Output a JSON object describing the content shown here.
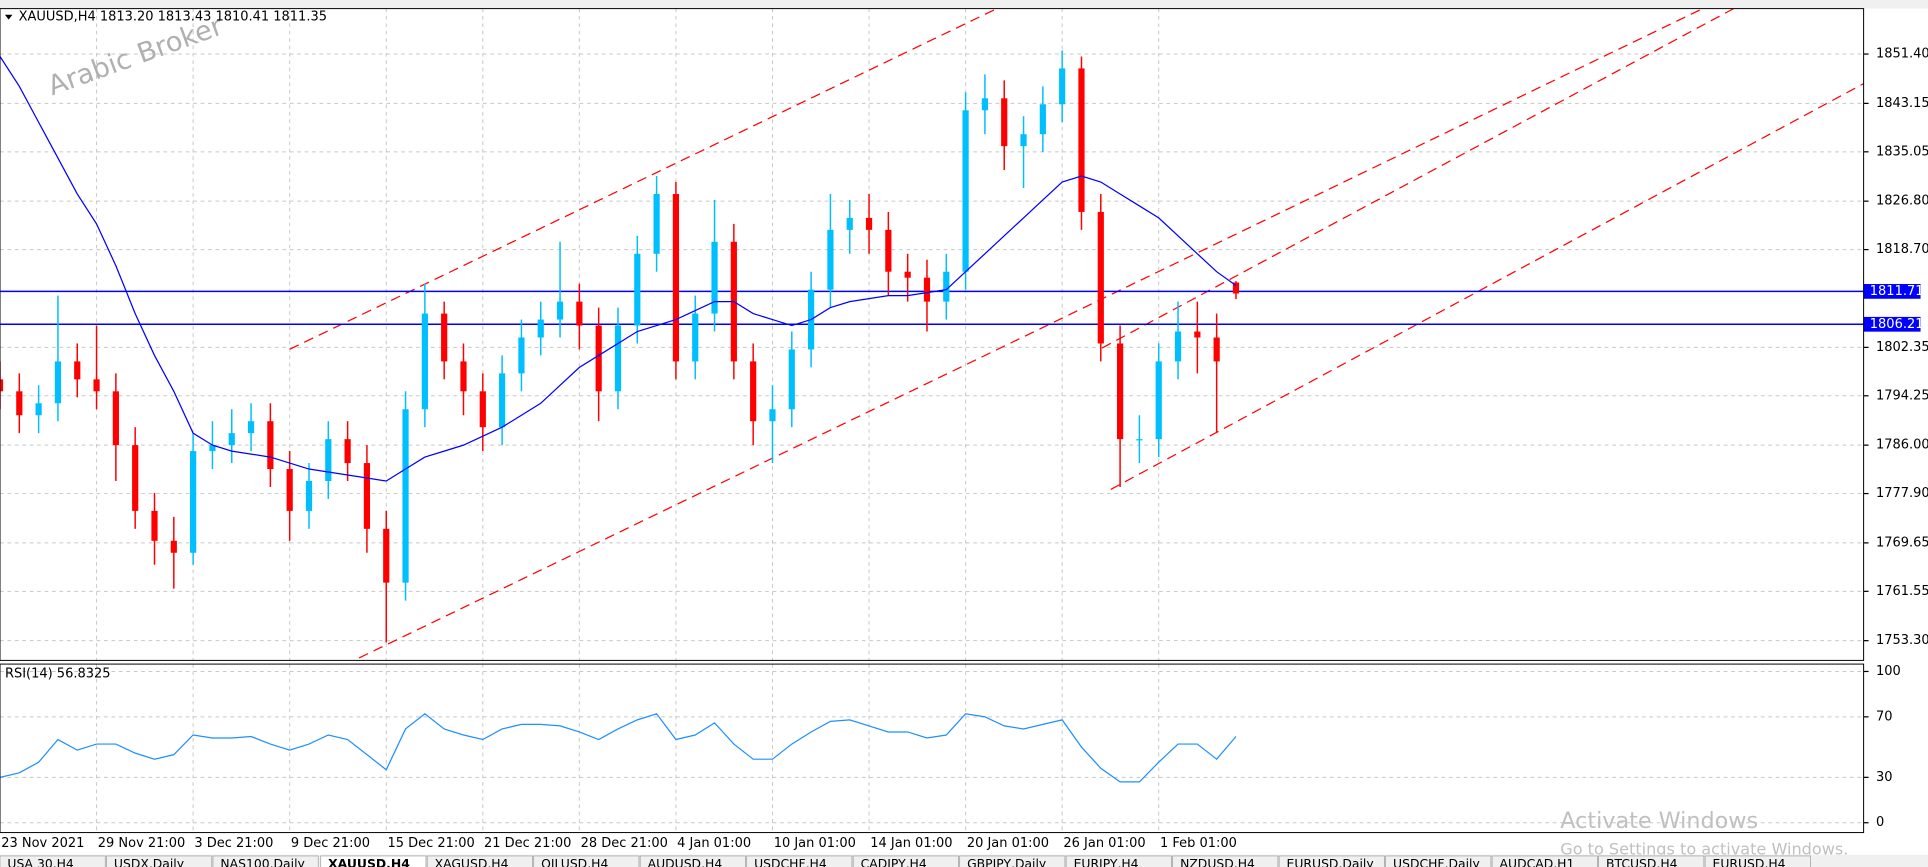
{
  "chart_data": [
    {
      "type": "candlestick",
      "title": "XAUUSD,H4  1813.20 1813.43 1810.41 1811.35",
      "open": [
        1797,
        1795,
        1791,
        1793,
        1800,
        1797,
        1795,
        1786,
        1775,
        1770,
        1768,
        1785,
        1786,
        1788,
        1790,
        1782,
        1775,
        1780,
        1787,
        1783,
        1772,
        1763,
        1792,
        1808,
        1800,
        1795,
        1789,
        1798,
        1804,
        1807,
        1810,
        1806,
        1795,
        1806,
        1818,
        1828,
        1800,
        1808,
        1820,
        1800,
        1790,
        1792,
        1802,
        1812,
        1822,
        1824,
        1822,
        1815,
        1814,
        1810,
        1815,
        1842,
        1844,
        1836,
        1838,
        1843,
        1849,
        1825,
        1803,
        1787,
        1787,
        1800,
        1805,
        1804,
        1813.2
      ],
      "high": [
        1800,
        1798,
        1796,
        1811,
        1803,
        1806,
        1798,
        1789,
        1778,
        1774,
        1788,
        1790,
        1792,
        1793,
        1793,
        1785,
        1783,
        1790,
        1790,
        1786,
        1775,
        1795,
        1813,
        1810,
        1803,
        1798,
        1801,
        1807,
        1810,
        1820,
        1813,
        1809,
        1809,
        1821,
        1831,
        1830,
        1811,
        1827,
        1823,
        1803,
        1796,
        1805,
        1815,
        1828,
        1827,
        1828,
        1825,
        1818,
        1817,
        1818,
        1845,
        1848,
        1847,
        1841,
        1846,
        1852,
        1851,
        1828,
        1806,
        1791,
        1803,
        1810,
        1810,
        1808,
        1813.43
      ],
      "low": [
        1792,
        1788,
        1788,
        1790,
        1794,
        1792,
        1780,
        1772,
        1766,
        1762,
        1766,
        1782,
        1783,
        1785,
        1779,
        1770,
        1772,
        1777,
        1780,
        1768,
        1753,
        1760,
        1789,
        1797,
        1791,
        1785,
        1786,
        1795,
        1801,
        1804,
        1802,
        1790,
        1792,
        1803,
        1815,
        1797,
        1797,
        1805,
        1797,
        1786,
        1783,
        1789,
        1799,
        1809,
        1818,
        1818,
        1811,
        1810,
        1805,
        1807,
        1812,
        1838,
        1832,
        1829,
        1835,
        1840,
        1822,
        1800,
        1779,
        1783,
        1784,
        1797,
        1798,
        1788,
        1810.41
      ],
      "close": [
        1795,
        1791,
        1793,
        1800,
        1797,
        1795,
        1786,
        1775,
        1770,
        1768,
        1785,
        1786,
        1788,
        1790,
        1782,
        1775,
        1780,
        1787,
        1783,
        1772,
        1763,
        1792,
        1808,
        1800,
        1795,
        1789,
        1798,
        1804,
        1807,
        1810,
        1806,
        1795,
        1806,
        1818,
        1828,
        1800,
        1808,
        1820,
        1800,
        1790,
        1792,
        1802,
        1812,
        1822,
        1824,
        1822,
        1815,
        1814,
        1810,
        1815,
        1842,
        1844,
        1836,
        1838,
        1843,
        1849,
        1825,
        1803,
        1787,
        1787,
        1800,
        1805,
        1804,
        1800,
        1811.35
      ],
      "up_color": "#00bfff",
      "down_color": "#ff0000",
      "series": [
        {
          "color": "#0000ff",
          "values": [
            1851,
            1846,
            1840,
            1834,
            1828,
            1823,
            1816,
            1808,
            1801,
            1795,
            1788,
            1786,
            1785,
            1784.5,
            1784,
            1783,
            1782,
            1781.5,
            1781,
            1780.5,
            1780,
            1782,
            1784,
            1785,
            1786,
            1787.5,
            1789,
            1791,
            1793,
            1796,
            1799,
            1801,
            1803,
            1805,
            1806,
            1807,
            1808.5,
            1810,
            1810,
            1808,
            1807,
            1806,
            1807,
            1809,
            1810,
            1810.5,
            1811,
            1811,
            1811.5,
            1812,
            1815,
            1818,
            1821,
            1824,
            1827,
            1830,
            1831,
            1830,
            1828,
            1826,
            1824,
            1821,
            1818,
            1815,
            1812.7
          ]
        }
      ],
      "horizontal_lines": [
        {
          "value": 1811.71,
          "color": "#0000ff"
        },
        {
          "value": 1806.21,
          "color": "#0000ff"
        }
      ],
      "xlim": [
        0,
        96.5
      ],
      "ylim": [
        1750.0,
        1859.0
      ],
      "yticks": [
        {
          "value": 1851.4,
          "label": "1851.40"
        },
        1843.15,
        1835.05,
        {
          "value": 1826.8,
          "label": "1826.80"
        },
        {
          "value": 1818.7,
          "label": "1818.70"
        },
        1802.35,
        1794.25,
        {
          "value": 1786.0,
          "label": "1786.00"
        },
        {
          "value": 1777.9,
          "label": "1777.90"
        },
        1769.65,
        1761.55,
        {
          "value": 1753.3,
          "label": "1753.30"
        }
      ],
      "grid": true
    },
    {
      "type": "line",
      "title": "RSI(14) 56.8325",
      "series": [
        {
          "color": "#1e90ff",
          "values": [
            30,
            33,
            40,
            55,
            48,
            52,
            52,
            46,
            42,
            45,
            58,
            56,
            56,
            57,
            52,
            48,
            52,
            58,
            55,
            45,
            35,
            62,
            72,
            62,
            58,
            55,
            62,
            65,
            65,
            64,
            60,
            55,
            62,
            68,
            72,
            55,
            58,
            66,
            52,
            42,
            42,
            52,
            60,
            67,
            68,
            64,
            60,
            60,
            56,
            58,
            72,
            70,
            64,
            62,
            65,
            68,
            50,
            36,
            27,
            27,
            40,
            52,
            52,
            42,
            57
          ]
        }
      ],
      "xlim": [
        0,
        96.5
      ],
      "xticks": [
        {
          "value": 0,
          "label": "23 Nov 2021"
        },
        {
          "value": 5,
          "label": "29 Nov 21:00"
        },
        {
          "value": 10,
          "label": "3 Dec 21:00"
        },
        {
          "value": 15,
          "label": "9 Dec 21:00"
        },
        {
          "value": 20,
          "label": "15 Dec 21:00"
        },
        {
          "value": 25,
          "label": "21 Dec 21:00"
        },
        {
          "value": 30,
          "label": "28 Dec 21:00"
        },
        {
          "value": 35,
          "label": "4 Jan 01:00"
        },
        {
          "value": 40,
          "label": "10 Jan 01:00"
        },
        {
          "value": 45,
          "label": "14 Jan 01:00"
        },
        {
          "value": 50,
          "label": "20 Jan 01:00"
        },
        {
          "value": 55,
          "label": "26 Jan 01:00"
        },
        {
          "value": 60,
          "label": "1 Feb 01:00"
        }
      ],
      "ylim": [
        0,
        100
      ],
      "yticks": [
        100,
        70,
        30,
        0
      ],
      "grid": true
    }
  ],
  "watermark": "Arabic Broker",
  "activation": {
    "title": "Activate Windows",
    "text": "Go to Settings to activate Windows."
  },
  "tabs": [
    "USA 30,H4",
    "USDX,Daily",
    "NAS100,Daily",
    "XAUUSD,H4",
    "XAGUSD,H4",
    "OILUSD,H4",
    "AUDUSD,H4",
    "USDCHF,H4",
    "CADJPY,H4",
    "GBPJPY,Daily",
    "EURJPY,H4",
    "NZDUSD,H4",
    "EURUSD,Daily",
    "USDCHF,Daily",
    "AUDCAD,H1",
    "BTCUSD,H4",
    "EURUSD,H4"
  ]
}
